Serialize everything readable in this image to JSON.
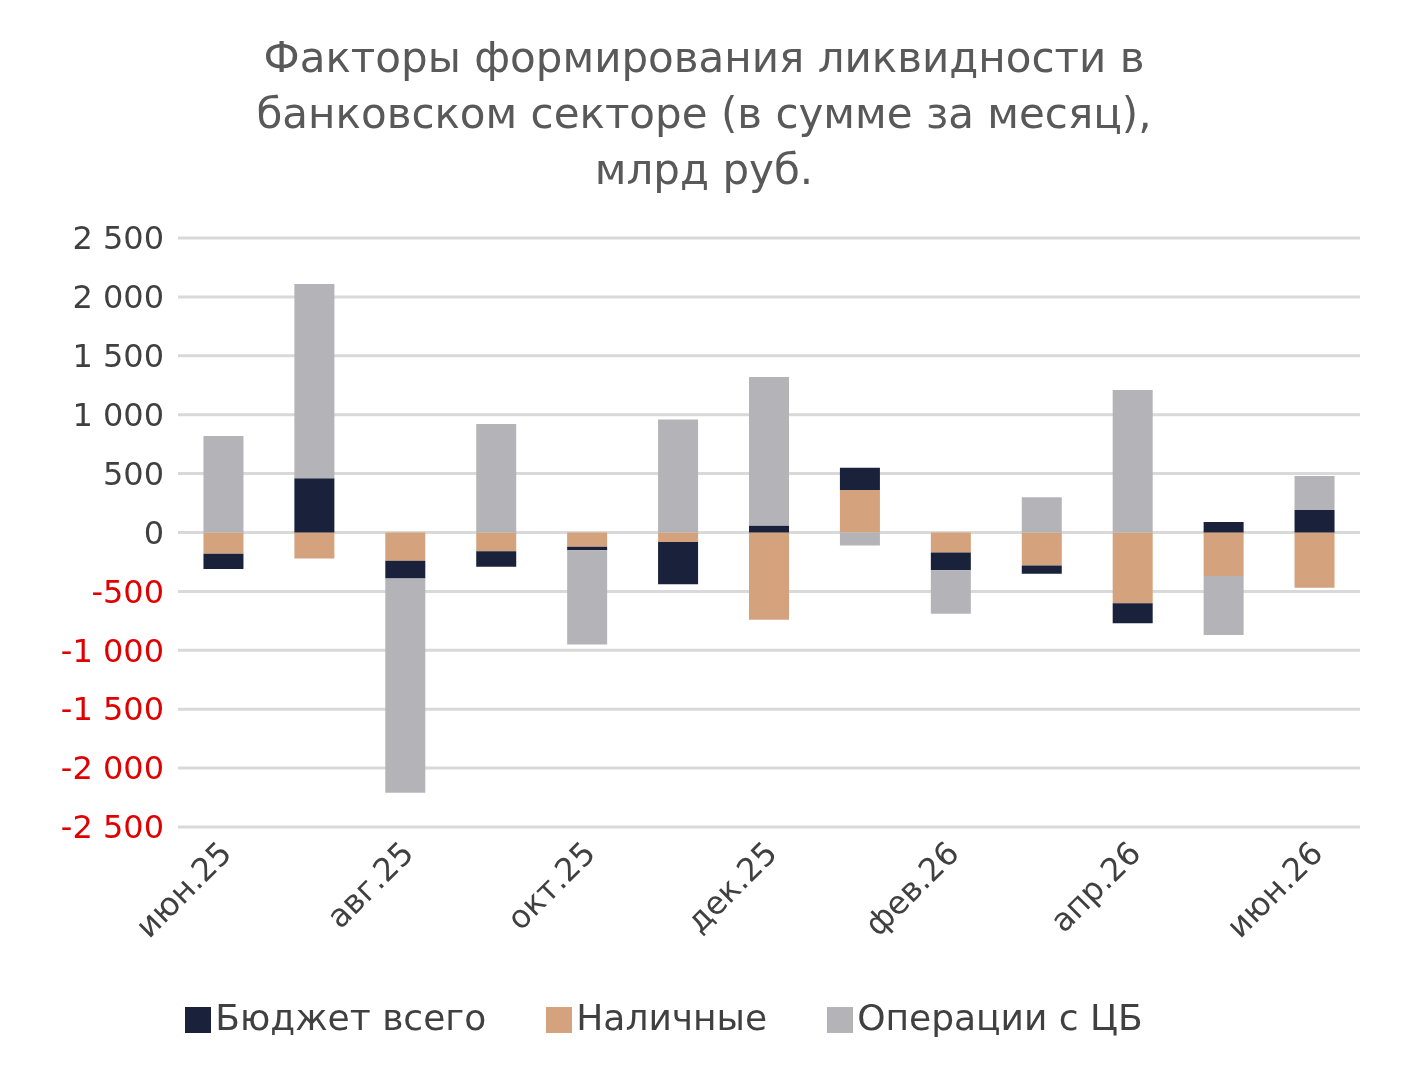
{
  "chart_data": {
    "type": "bar",
    "title": "Факторы формирования ликвидности в банковском секторе (в сумме за месяц), млрд руб.",
    "categories": [
      "июн.25",
      null,
      "авг.25",
      null,
      "окт.25",
      null,
      "дек.25",
      null,
      "фев.26",
      null,
      "апр.26",
      null,
      "июн.26"
    ],
    "stacked": true,
    "series": [
      {
        "name": "Наличные",
        "color": "#d4a27c",
        "values": [
          -180,
          -220,
          -240,
          -160,
          -120,
          -80,
          -740,
          360,
          -170,
          -280,
          -600,
          -370,
          -470
        ]
      },
      {
        "name": "Бюджет всего",
        "color": "#19223a",
        "values": [
          -130,
          460,
          -150,
          -130,
          -30,
          -360,
          60,
          190,
          -150,
          -70,
          -170,
          90,
          190
        ]
      },
      {
        "name": "Операции с ЦБ",
        "color": "#b4b4b8",
        "values": [
          820,
          1650,
          -1820,
          920,
          -800,
          960,
          1260,
          -110,
          -370,
          300,
          1210,
          -500,
          290
        ]
      }
    ],
    "ylim": [
      -2500,
      2500
    ],
    "yticks": [
      {
        "value": 2500,
        "label": "2 500"
      },
      {
        "value": 2000,
        "label": "2 000"
      },
      {
        "value": 1500,
        "label": "1 500"
      },
      {
        "value": 1000,
        "label": "1 000"
      },
      500,
      0,
      -500,
      {
        "value": -1000,
        "label": "-1 000"
      },
      {
        "value": -1500,
        "label": "-1 500"
      },
      {
        "value": -2000,
        "label": "-2 000"
      },
      {
        "value": -2500,
        "label": "-2 500"
      }
    ],
    "grid": "y",
    "legend": "bottom"
  }
}
